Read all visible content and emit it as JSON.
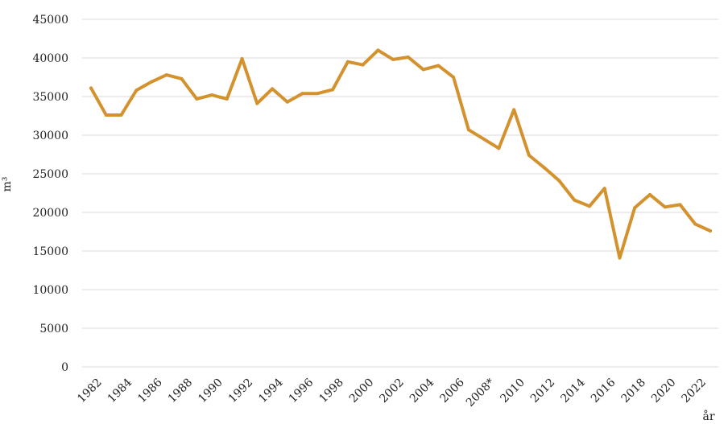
{
  "chart_data": {
    "type": "line",
    "title": "",
    "xlabel": "år",
    "ylabel": "m³",
    "ylim": [
      0,
      45000
    ],
    "yticks": [
      0,
      5000,
      10000,
      15000,
      20000,
      25000,
      30000,
      35000,
      40000,
      45000
    ],
    "grid": true,
    "legend": "none",
    "line_color": "#D4922E",
    "grid_color": "#D9D9D9",
    "x": [
      "1982",
      "1983",
      "1984",
      "1985",
      "1986",
      "1987",
      "1988",
      "1989",
      "1990",
      "1991",
      "1992",
      "1993",
      "1994",
      "1995",
      "1996",
      "1997",
      "1998",
      "1999",
      "2000",
      "2001",
      "2002",
      "2003",
      "2004",
      "2005",
      "2006",
      "2007",
      "2008*",
      "2009",
      "2010",
      "2011",
      "2012",
      "2013",
      "2014",
      "2015",
      "2016",
      "2017",
      "2018",
      "2019",
      "2020",
      "2021",
      "2022",
      "2023"
    ],
    "x_tick_labels": [
      "1982",
      "",
      "1984",
      "",
      "1986",
      "",
      "1988",
      "",
      "1990",
      "",
      "1992",
      "",
      "1994",
      "",
      "1996",
      "",
      "1998",
      "",
      "2000",
      "",
      "2002",
      "",
      "2004",
      "",
      "2006",
      "",
      "2008*",
      "",
      "2010",
      "",
      "2012",
      "",
      "2014",
      "",
      "2016",
      "",
      "2018",
      "",
      "2020",
      "",
      "2022",
      ""
    ],
    "series": [
      {
        "values": [
          36100,
          32600,
          32600,
          35800,
          36900,
          37800,
          37300,
          34700,
          35200,
          34700,
          39900,
          34100,
          36000,
          34300,
          35400,
          35400,
          35900,
          39500,
          39100,
          41000,
          39800,
          40100,
          38500,
          39000,
          37500,
          30700,
          29500,
          28300,
          33300,
          27400,
          25800,
          24100,
          21600,
          20800,
          23100,
          14100,
          20600,
          22300,
          20700,
          21000,
          18500,
          17600
        ]
      }
    ]
  }
}
